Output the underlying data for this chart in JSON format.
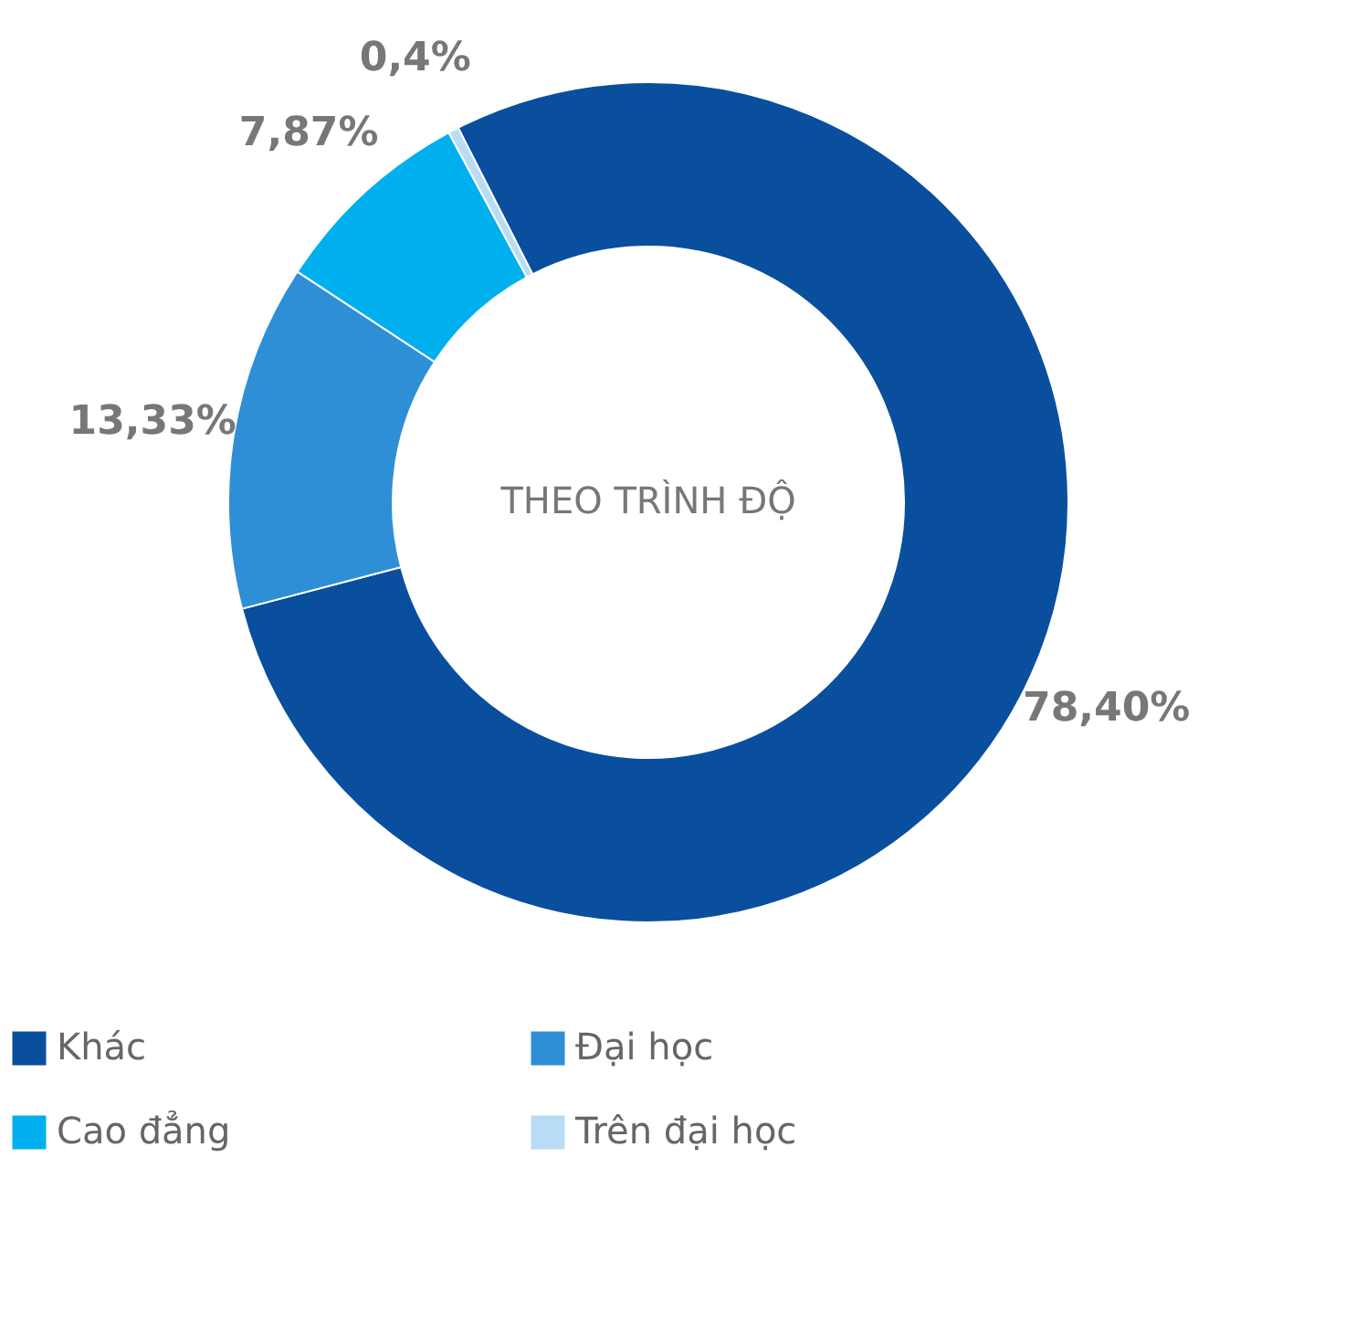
{
  "chart_data": {
    "type": "donut",
    "title": "THEO TRÌNH ĐỘ",
    "categories": [
      "Khác",
      "Đại học",
      "Cao đẳng",
      "Trên đại học"
    ],
    "values": [
      78.4,
      13.33,
      7.87,
      0.4
    ],
    "colors": [
      "#0a4f9e",
      "#2e8fd6",
      "#00b0ee",
      "#b8dcf5"
    ],
    "value_labels": [
      "78,40%",
      "13,33%",
      "7,87%",
      "0,4%"
    ],
    "legend": "bottom"
  }
}
